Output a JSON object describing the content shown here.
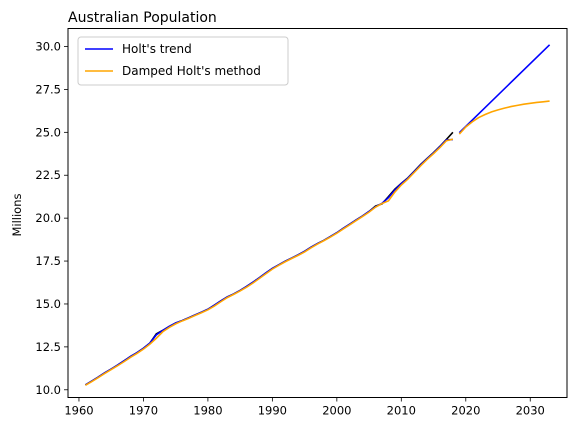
{
  "chart_data": {
    "type": "line",
    "title": "Australian Population",
    "xlabel": "",
    "ylabel": "Millions",
    "xlim": [
      1958.3,
      2035.7
    ],
    "ylim": [
      9.55,
      31.05
    ],
    "xticks": [
      1960,
      1970,
      1980,
      1990,
      2000,
      2010,
      2020,
      2030
    ],
    "yticks": [
      10.0,
      12.5,
      15.0,
      17.5,
      20.0,
      22.5,
      25.0,
      27.5,
      30.0
    ],
    "grid": false,
    "legend_position": "top-left",
    "observed": {
      "color": "#000000",
      "x": [
        1961,
        1962,
        1963,
        1964,
        1965,
        1966,
        1967,
        1968,
        1969,
        1970,
        1971,
        1972,
        1973,
        1974,
        1975,
        1976,
        1977,
        1978,
        1979,
        1980,
        1981,
        1982,
        1983,
        1984,
        1985,
        1986,
        1987,
        1988,
        1989,
        1990,
        1991,
        1992,
        1993,
        1994,
        1995,
        1996,
        1997,
        1998,
        1999,
        2000,
        2001,
        2002,
        2003,
        2004,
        2005,
        2006,
        2007,
        2008,
        2009,
        2010,
        2011,
        2012,
        2013,
        2014,
        2015,
        2016,
        2017,
        2018
      ],
      "values": [
        10.28,
        10.51,
        10.74,
        10.99,
        11.21,
        11.44,
        11.69,
        11.94,
        12.16,
        12.42,
        12.72,
        13.26,
        13.46,
        13.69,
        13.89,
        14.03,
        14.19,
        14.36,
        14.52,
        14.69,
        14.93,
        15.18,
        15.41,
        15.58,
        15.79,
        16.02,
        16.27,
        16.53,
        16.81,
        17.07,
        17.28,
        17.49,
        17.67,
        17.86,
        18.07,
        18.31,
        18.52,
        18.71,
        18.93,
        19.15,
        19.41,
        19.65,
        19.9,
        20.13,
        20.39,
        20.7,
        20.83,
        21.25,
        21.69,
        22.03,
        22.34,
        22.73,
        23.13,
        23.48,
        23.82,
        24.19,
        24.59,
        25.0
      ]
    },
    "series": [
      {
        "name": "Holt's trend",
        "color": "#0000ff",
        "x": [
          1961,
          1962,
          1963,
          1964,
          1965,
          1966,
          1967,
          1968,
          1969,
          1970,
          1971,
          1972,
          1973,
          1974,
          1975,
          1976,
          1977,
          1978,
          1979,
          1980,
          1981,
          1982,
          1983,
          1984,
          1985,
          1986,
          1987,
          1988,
          1989,
          1990,
          1991,
          1992,
          1993,
          1994,
          1995,
          1996,
          1997,
          1998,
          1999,
          2000,
          2001,
          2002,
          2003,
          2004,
          2005,
          2006,
          2007,
          2008,
          2009,
          2010,
          2011,
          2012,
          2013,
          2014,
          2015,
          2016,
          2017,
          2018,
          null,
          2019,
          2033
        ],
        "values": [
          10.28,
          10.51,
          10.74,
          10.99,
          11.21,
          11.44,
          11.69,
          11.94,
          12.16,
          12.42,
          12.72,
          13.2,
          13.46,
          13.69,
          13.89,
          14.03,
          14.19,
          14.36,
          14.52,
          14.69,
          14.93,
          15.18,
          15.41,
          15.58,
          15.79,
          16.02,
          16.27,
          16.53,
          16.81,
          17.07,
          17.28,
          17.49,
          17.67,
          17.86,
          18.07,
          18.31,
          18.52,
          18.71,
          18.93,
          19.15,
          19.41,
          19.65,
          19.9,
          20.13,
          20.39,
          20.66,
          20.86,
          21.19,
          21.64,
          22.01,
          22.32,
          22.71,
          23.1,
          23.46,
          23.8,
          24.17,
          24.56,
          24.58,
          null,
          24.98,
          30.1
        ]
      },
      {
        "name": "Damped Holt's method",
        "color": "#ffa500",
        "x": [
          1961,
          1962,
          1963,
          1964,
          1965,
          1966,
          1967,
          1968,
          1969,
          1970,
          1971,
          1972,
          1973,
          1974,
          1975,
          1976,
          1977,
          1978,
          1979,
          1980,
          1981,
          1982,
          1983,
          1984,
          1985,
          1986,
          1987,
          1988,
          1989,
          1990,
          1991,
          1992,
          1993,
          1994,
          1995,
          1996,
          1997,
          1998,
          1999,
          2000,
          2001,
          2002,
          2003,
          2004,
          2005,
          2006,
          2007,
          2008,
          2009,
          2010,
          2011,
          2012,
          2013,
          2014,
          2015,
          2016,
          2017,
          2018,
          null,
          2019,
          2020,
          2021,
          2022,
          2023,
          2024,
          2025,
          2026,
          2027,
          2028,
          2029,
          2030,
          2031,
          2032,
          2033
        ],
        "values": [
          10.26,
          10.48,
          10.71,
          10.95,
          11.18,
          11.4,
          11.64,
          11.89,
          12.12,
          12.37,
          12.66,
          13.0,
          13.38,
          13.63,
          13.84,
          14.01,
          14.16,
          14.33,
          14.49,
          14.66,
          14.88,
          15.13,
          15.37,
          15.56,
          15.76,
          15.98,
          16.22,
          16.49,
          16.76,
          17.03,
          17.25,
          17.46,
          17.65,
          17.83,
          18.03,
          18.27,
          18.49,
          18.69,
          18.9,
          19.12,
          19.37,
          19.61,
          19.86,
          20.1,
          20.35,
          20.64,
          20.85,
          21.01,
          21.52,
          21.93,
          22.27,
          22.66,
          23.05,
          23.42,
          23.76,
          24.12,
          24.51,
          24.6,
          null,
          24.9,
          25.31,
          25.61,
          25.86,
          26.04,
          26.19,
          26.31,
          26.41,
          26.5,
          26.57,
          26.64,
          26.69,
          26.74,
          26.78,
          26.82
        ]
      }
    ]
  }
}
